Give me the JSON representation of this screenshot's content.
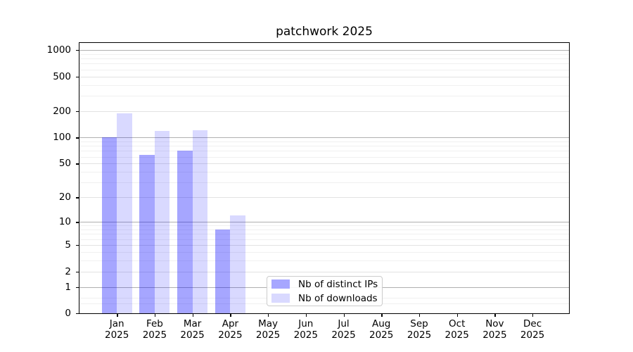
{
  "chart_data": {
    "type": "bar",
    "title": "patchwork 2025",
    "categories": [
      {
        "month": "Jan",
        "year": "2025"
      },
      {
        "month": "Feb",
        "year": "2025"
      },
      {
        "month": "Mar",
        "year": "2025"
      },
      {
        "month": "Apr",
        "year": "2025"
      },
      {
        "month": "May",
        "year": "2025"
      },
      {
        "month": "Jun",
        "year": "2025"
      },
      {
        "month": "Jul",
        "year": "2025"
      },
      {
        "month": "Aug",
        "year": "2025"
      },
      {
        "month": "Sep",
        "year": "2025"
      },
      {
        "month": "Oct",
        "year": "2025"
      },
      {
        "month": "Nov",
        "year": "2025"
      },
      {
        "month": "Dec",
        "year": "2025"
      }
    ],
    "series": [
      {
        "name": "Nb of distinct IPs",
        "values": [
          100,
          63,
          70,
          8,
          0,
          0,
          0,
          0,
          0,
          0,
          0,
          0
        ],
        "fill": "rgba(0,0,255,0.35)",
        "hex_on_white": "#a6a6ff"
      },
      {
        "name": "Nb of downloads",
        "values": [
          190,
          118,
          122,
          12,
          0,
          0,
          0,
          0,
          0,
          0,
          0,
          0
        ],
        "fill": "rgba(0,0,255,0.15)",
        "hex_on_white": "#d9d9ff"
      }
    ],
    "y_axis": {
      "scale": "log1p",
      "range": [
        0,
        1000
      ],
      "ticks": [
        0,
        1,
        2,
        5,
        10,
        20,
        50,
        100,
        200,
        500,
        1000
      ],
      "tick_labels": [
        "0",
        "1",
        "2",
        "5",
        "10",
        "20",
        "50",
        "100",
        "200",
        "500",
        "1000"
      ],
      "minor_ticks": [
        0.3,
        0.5,
        3,
        4,
        6,
        7,
        8,
        9,
        30,
        40,
        60,
        70,
        80,
        90,
        300,
        400,
        600,
        700,
        800,
        900
      ]
    },
    "grid": true,
    "legend_position": "lower-center",
    "colors": {
      "grid_major": "#b0b0b0",
      "grid_mid": "#e2e2e2",
      "grid_minor": "#f0f0f0",
      "axis": "#000000",
      "text": "#000000",
      "background": "#ffffff"
    }
  }
}
